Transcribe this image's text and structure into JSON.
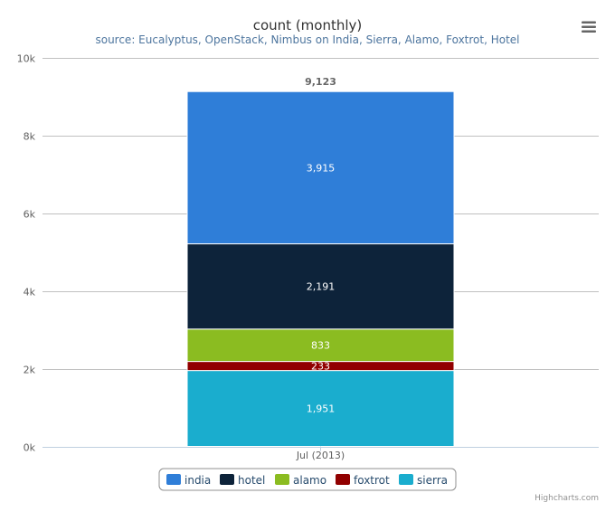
{
  "menu_icon": "hamburger-menu-icon",
  "credits": "Highcharts.com",
  "chart_data": {
    "type": "bar",
    "stacked": true,
    "title": "count (monthly)",
    "subtitle": "source: Eucalyptus, OpenStack, Nimbus on India, Sierra, Alamo, Foxtrot, Hotel",
    "categories": [
      "Jul (2013)"
    ],
    "ylim": [
      0,
      10000
    ],
    "yticks": [
      "0k",
      "2k",
      "4k",
      "6k",
      "8k",
      "10k"
    ],
    "ytick_values": [
      0,
      2000,
      4000,
      6000,
      8000,
      10000
    ],
    "grid": true,
    "legend_position": "bottom-center",
    "stack_totals": [
      "9,123"
    ],
    "series": [
      {
        "name": "india",
        "color": "#2f7ed8",
        "values": [
          3915
        ],
        "label": "3,915"
      },
      {
        "name": "hotel",
        "color": "#0d233a",
        "values": [
          2191
        ],
        "label": "2,191"
      },
      {
        "name": "alamo",
        "color": "#8bbc21",
        "values": [
          833
        ],
        "label": "833"
      },
      {
        "name": "foxtrot",
        "color": "#910000",
        "values": [
          233
        ],
        "label": "233"
      },
      {
        "name": "sierra",
        "color": "#1aadce",
        "values": [
          1951
        ],
        "label": "1,951"
      }
    ]
  }
}
